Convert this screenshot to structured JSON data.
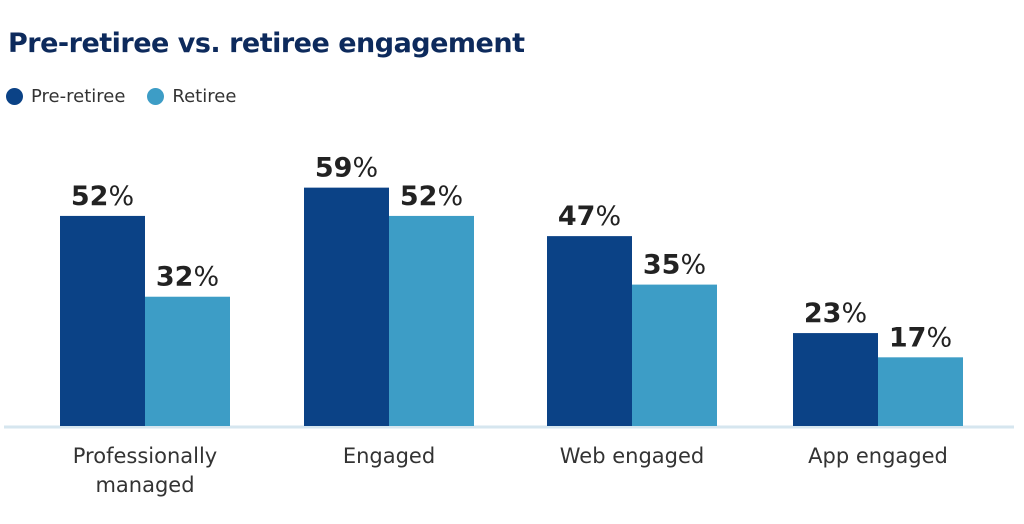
{
  "chart_data": {
    "type": "bar",
    "title": "Pre-retiree vs. retiree engagement",
    "categories": [
      "Professionally managed",
      "Engaged",
      "Web engaged",
      "App engaged"
    ],
    "category_lines": [
      [
        "Professionally",
        "managed"
      ],
      [
        "Engaged"
      ],
      [
        "Web engaged"
      ],
      [
        "App engaged"
      ]
    ],
    "series": [
      {
        "name": "Pre-retiree",
        "color": "#0b4286",
        "values": [
          52,
          59,
          47,
          23
        ]
      },
      {
        "name": "Retiree",
        "color": "#3d9dc6",
        "values": [
          32,
          52,
          35,
          17
        ]
      }
    ],
    "value_suffix": "%",
    "ylim": [
      0,
      60
    ],
    "grid": false,
    "legend": "top-left",
    "axis_color": "#d6e6ef"
  }
}
